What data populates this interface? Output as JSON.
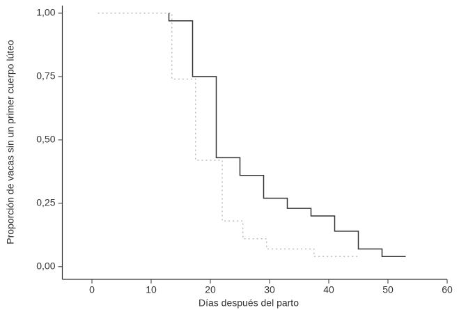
{
  "chart_data": {
    "type": "line",
    "step": true,
    "xlabel": "Días después del parto",
    "ylabel": "Proporción de vacas sin un primer cuerpo lúteo",
    "xlim": [
      -5,
      60
    ],
    "xticks": [
      0,
      10,
      20,
      30,
      40,
      50,
      60
    ],
    "ylim": [
      -0.05,
      1.03
    ],
    "yticks": [
      {
        "value": 0,
        "label": "0,00"
      },
      {
        "value": 0.25,
        "label": "0,25"
      },
      {
        "value": 0.5,
        "label": "0,50"
      },
      {
        "value": 0.75,
        "label": "0,75"
      },
      {
        "value": 1,
        "label": "1,00"
      }
    ],
    "grid": false,
    "series": [
      {
        "color": "#bdbdbd",
        "dash": "2,4",
        "x": [
          1,
          13.5,
          13.5,
          17.5,
          17.5,
          22,
          22,
          25.5,
          25.5,
          29.5,
          29.5,
          37.5,
          37.5,
          45
        ],
        "values": [
          1,
          1,
          0.74,
          0.74,
          0.42,
          0.42,
          0.18,
          0.18,
          0.11,
          0.11,
          0.07,
          0.07,
          0.04,
          0.04
        ]
      },
      {
        "color": "#333333",
        "dash": "",
        "x": [
          13,
          13,
          17,
          17,
          21,
          21,
          25,
          25,
          29,
          29,
          33,
          33,
          37,
          37,
          41,
          41,
          45,
          45,
          49,
          49,
          53
        ],
        "values": [
          1,
          0.97,
          0.97,
          0.75,
          0.75,
          0.43,
          0.43,
          0.36,
          0.36,
          0.27,
          0.27,
          0.23,
          0.23,
          0.2,
          0.2,
          0.14,
          0.14,
          0.07,
          0.07,
          0.04,
          0.04
        ]
      }
    ]
  }
}
